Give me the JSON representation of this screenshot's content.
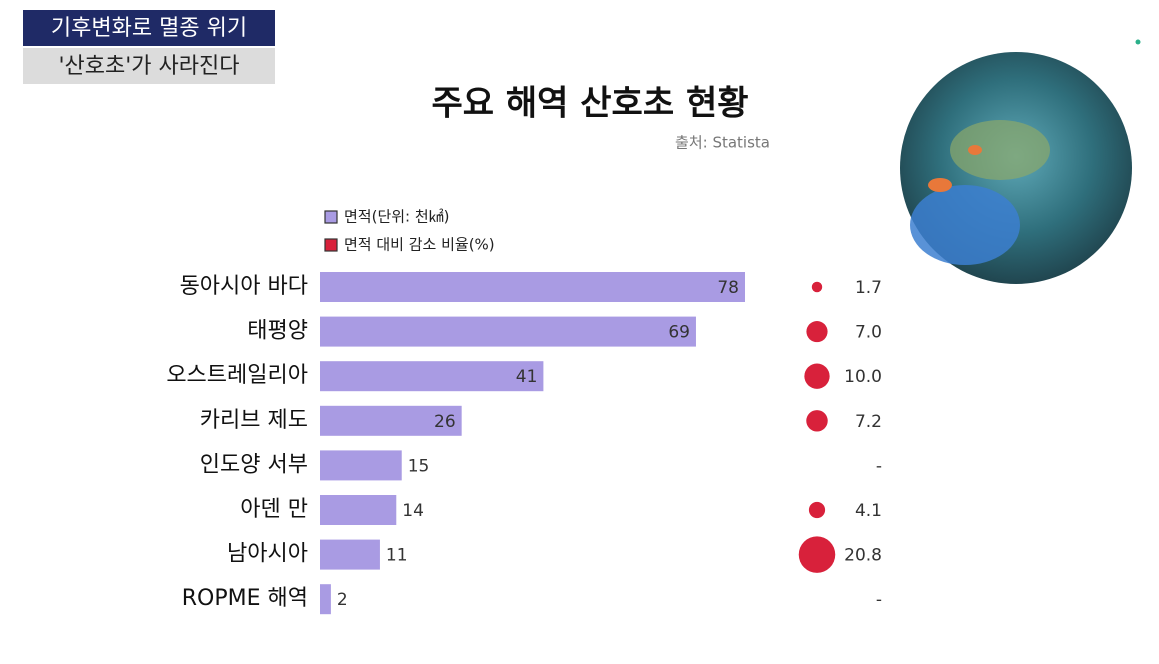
{
  "header": {
    "headline": "기후변화로 멸종 위기",
    "subheadline": "'산호초'가 사라진다"
  },
  "chart_data": {
    "type": "bar",
    "title": "주요 해역 산호초 현황",
    "source": "출처: Statista",
    "categories": [
      "동아시아 바다",
      "태평양",
      "오스트레일리아",
      "카리브 제도",
      "인도양 서부",
      "아덴 만",
      "남아시아",
      "ROPME 해역"
    ],
    "series": [
      {
        "name": "면적(단위: 천㎢)",
        "color": "#a99be3",
        "values": [
          78,
          69,
          41,
          26,
          15,
          14,
          11,
          2
        ]
      },
      {
        "name": "면적 대비 감소 비율(%)",
        "color": "#d8213b",
        "values": [
          1.7,
          7.0,
          10.0,
          7.2,
          null,
          4.1,
          20.8,
          null
        ],
        "value_labels": [
          "1.7",
          "7.0",
          "10.0",
          "7.2",
          "-",
          "4.1",
          "20.8",
          "-"
        ]
      }
    ]
  }
}
